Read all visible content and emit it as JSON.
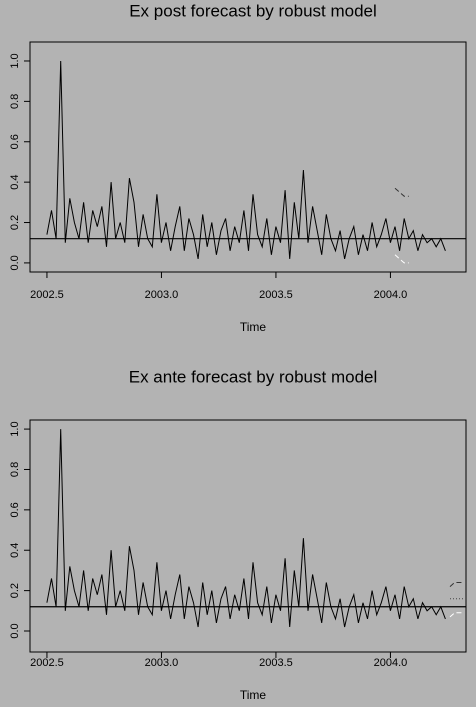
{
  "chart_data": [
    {
      "type": "line",
      "title": "Ex post forecast by robust model",
      "xlabel": "Time",
      "xlim": [
        2002.426,
        2004.33
      ],
      "ylim": [
        -0.045,
        1.094
      ],
      "xticks": [
        2002.5,
        {
          "value": 2003,
          "label": "2003.0"
        },
        2003.5,
        {
          "value": 2004,
          "label": "2004.0"
        }
      ],
      "yticks": [
        {
          "value": 0,
          "label": "0.0"
        },
        0.2,
        0.4,
        0.6,
        0.8,
        {
          "value": 1,
          "label": "1.0"
        }
      ],
      "reference_line": 0.12,
      "series": [
        {
          "color": "#000000",
          "style": "solid",
          "x": [
            2002.5,
            2002.52,
            2002.54,
            2002.56,
            2002.58,
            2002.6,
            2002.62,
            2002.64,
            2002.66,
            2002.68,
            2002.7,
            2002.72,
            2002.74,
            2002.76,
            2002.78,
            2002.8,
            2002.82,
            2002.84,
            2002.86,
            2002.88,
            2002.9,
            2002.92,
            2002.94,
            2002.96,
            2002.98,
            2003,
            2003.02,
            2003.04,
            2003.06,
            2003.08,
            2003.1,
            2003.12,
            2003.14,
            2003.16,
            2003.18,
            2003.2,
            2003.22,
            2003.24,
            2003.26,
            2003.28,
            2003.3,
            2003.32,
            2003.34,
            2003.36,
            2003.38,
            2003.4,
            2003.42,
            2003.44,
            2003.46,
            2003.48,
            2003.5,
            2003.52,
            2003.54,
            2003.56,
            2003.58,
            2003.6,
            2003.62,
            2003.64,
            2003.66,
            2003.68,
            2003.7,
            2003.72,
            2003.74,
            2003.76,
            2003.78,
            2003.8,
            2003.82,
            2003.84,
            2003.86,
            2003.88,
            2003.9,
            2003.92,
            2003.94,
            2003.96,
            2003.98,
            2004,
            2004.02,
            2004.04,
            2004.06,
            2004.08,
            2004.1,
            2004.12,
            2004.14,
            2004.16,
            2004.18,
            2004.2,
            2004.22,
            2004.24
          ],
          "values": [
            0.14,
            0.26,
            0.12,
            1.0,
            0.1,
            0.32,
            0.2,
            0.12,
            0.3,
            0.1,
            0.26,
            0.18,
            0.28,
            0.08,
            0.4,
            0.12,
            0.2,
            0.1,
            0.42,
            0.3,
            0.08,
            0.24,
            0.12,
            0.08,
            0.34,
            0.1,
            0.2,
            0.06,
            0.18,
            0.28,
            0.06,
            0.22,
            0.14,
            0.02,
            0.24,
            0.08,
            0.2,
            0.04,
            0.16,
            0.22,
            0.06,
            0.18,
            0.1,
            0.26,
            0.06,
            0.34,
            0.14,
            0.08,
            0.22,
            0.04,
            0.18,
            0.1,
            0.36,
            0.02,
            0.3,
            0.12,
            0.46,
            0.1,
            0.28,
            0.16,
            0.04,
            0.24,
            0.12,
            0.06,
            0.16,
            0.02,
            0.12,
            0.18,
            0.04,
            0.14,
            0.06,
            0.2,
            0.08,
            0.14,
            0.22,
            0.1,
            0.18,
            0.06,
            0.22,
            0.12,
            0.16,
            0.06,
            0.14,
            0.1,
            0.12,
            0.08,
            0.12,
            0.06
          ]
        },
        {
          "color": "#333333",
          "style": "dashed",
          "x": [
            2004.02,
            2004.04,
            2004.06,
            2004.08
          ],
          "values": [
            0.37,
            0.35,
            0.33,
            0.33
          ]
        },
        {
          "color": "#ffffff",
          "style": "dashed",
          "x": [
            2004.02,
            2004.04,
            2004.06,
            2004.08
          ],
          "values": [
            0.04,
            0.02,
            0.0,
            0.0
          ]
        }
      ]
    },
    {
      "type": "line",
      "title": "Ex ante forecast by robust model",
      "xlabel": "Time",
      "xlim": [
        2002.426,
        2004.33
      ],
      "ylim": [
        -0.104,
        1.045
      ],
      "xticks": [
        2002.5,
        {
          "value": 2003,
          "label": "2003.0"
        },
        2003.5,
        {
          "value": 2004,
          "label": "2004.0"
        }
      ],
      "yticks": [
        {
          "value": 0,
          "label": "0.0"
        },
        0.2,
        0.4,
        0.6,
        0.8,
        {
          "value": 1,
          "label": "1.0"
        }
      ],
      "reference_line": 0.12,
      "series": [
        {
          "color": "#000000",
          "style": "solid",
          "x": [
            2002.5,
            2002.52,
            2002.54,
            2002.56,
            2002.58,
            2002.6,
            2002.62,
            2002.64,
            2002.66,
            2002.68,
            2002.7,
            2002.72,
            2002.74,
            2002.76,
            2002.78,
            2002.8,
            2002.82,
            2002.84,
            2002.86,
            2002.88,
            2002.9,
            2002.92,
            2002.94,
            2002.96,
            2002.98,
            2003,
            2003.02,
            2003.04,
            2003.06,
            2003.08,
            2003.1,
            2003.12,
            2003.14,
            2003.16,
            2003.18,
            2003.2,
            2003.22,
            2003.24,
            2003.26,
            2003.28,
            2003.3,
            2003.32,
            2003.34,
            2003.36,
            2003.38,
            2003.4,
            2003.42,
            2003.44,
            2003.46,
            2003.48,
            2003.5,
            2003.52,
            2003.54,
            2003.56,
            2003.58,
            2003.6,
            2003.62,
            2003.64,
            2003.66,
            2003.68,
            2003.7,
            2003.72,
            2003.74,
            2003.76,
            2003.78,
            2003.8,
            2003.82,
            2003.84,
            2003.86,
            2003.88,
            2003.9,
            2003.92,
            2003.94,
            2003.96,
            2003.98,
            2004,
            2004.02,
            2004.04,
            2004.06,
            2004.08,
            2004.1,
            2004.12,
            2004.14,
            2004.16,
            2004.18,
            2004.2,
            2004.22,
            2004.24
          ],
          "values": [
            0.14,
            0.26,
            0.12,
            1.0,
            0.1,
            0.32,
            0.2,
            0.12,
            0.3,
            0.1,
            0.26,
            0.18,
            0.28,
            0.08,
            0.4,
            0.12,
            0.2,
            0.1,
            0.42,
            0.3,
            0.08,
            0.24,
            0.12,
            0.08,
            0.34,
            0.1,
            0.2,
            0.06,
            0.18,
            0.28,
            0.06,
            0.22,
            0.14,
            0.02,
            0.24,
            0.08,
            0.2,
            0.04,
            0.16,
            0.22,
            0.06,
            0.18,
            0.1,
            0.26,
            0.06,
            0.34,
            0.14,
            0.08,
            0.22,
            0.04,
            0.18,
            0.1,
            0.36,
            0.02,
            0.3,
            0.12,
            0.46,
            0.1,
            0.28,
            0.16,
            0.04,
            0.24,
            0.12,
            0.06,
            0.16,
            0.02,
            0.12,
            0.18,
            0.04,
            0.14,
            0.06,
            0.2,
            0.08,
            0.14,
            0.22,
            0.1,
            0.18,
            0.06,
            0.22,
            0.12,
            0.16,
            0.06,
            0.14,
            0.1,
            0.12,
            0.08,
            0.12,
            0.06
          ]
        },
        {
          "color": "#333333",
          "style": "dashed",
          "x": [
            2004.26,
            2004.28,
            2004.3,
            2004.32
          ],
          "values": [
            0.22,
            0.24,
            0.24,
            0.24
          ]
        },
        {
          "color": "#444444",
          "style": "dotted",
          "x": [
            2004.26,
            2004.28,
            2004.3,
            2004.32
          ],
          "values": [
            0.16,
            0.16,
            0.16,
            0.16
          ]
        },
        {
          "color": "#ffffff",
          "style": "dashed",
          "x": [
            2004.26,
            2004.28,
            2004.3,
            2004.32
          ],
          "values": [
            0.07,
            0.09,
            0.09,
            0.09
          ]
        }
      ]
    }
  ]
}
